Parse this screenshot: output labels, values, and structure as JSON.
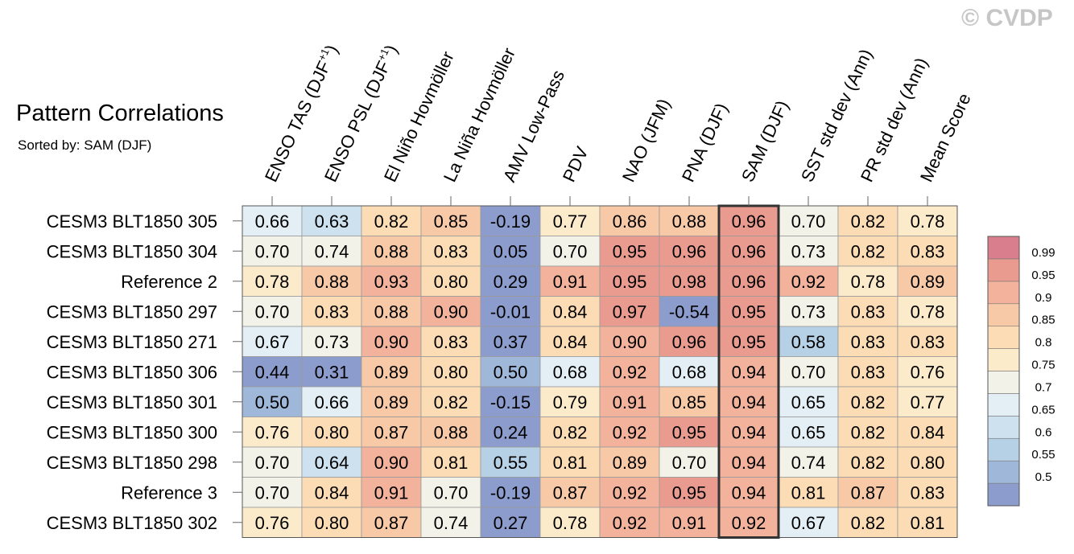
{
  "watermark": "© CVDP",
  "chart_data": {
    "type": "heatmap",
    "title": "Pattern Correlations",
    "subtitle": "Sorted by: SAM (DJF)",
    "columns": [
      "ENSO TAS (DJF+1)",
      "ENSO PSL (DJF+1)",
      "El Niño Hovmöller",
      "La Niña Hovmöller",
      "AMV Low-Pass",
      "PDV",
      "NAO (JFM)",
      "PNA (DJF)",
      "SAM (DJF)",
      "SST std dev (Ann)",
      "PR std dev (Ann)",
      "Mean Score"
    ],
    "highlighted_column": "SAM (DJF)",
    "rows": [
      {
        "label": "CESM3 BLT1850 305",
        "values": [
          0.66,
          0.63,
          0.82,
          0.85,
          -0.19,
          0.77,
          0.86,
          0.88,
          0.96,
          0.7,
          0.82,
          0.78
        ]
      },
      {
        "label": "CESM3 BLT1850 304",
        "values": [
          0.7,
          0.74,
          0.88,
          0.83,
          0.05,
          0.7,
          0.95,
          0.96,
          0.96,
          0.73,
          0.82,
          0.83
        ]
      },
      {
        "label": "Reference 2",
        "values": [
          0.78,
          0.88,
          0.93,
          0.8,
          0.29,
          0.91,
          0.95,
          0.98,
          0.96,
          0.92,
          0.78,
          0.89
        ]
      },
      {
        "label": "CESM3 BLT1850 297",
        "values": [
          0.7,
          0.83,
          0.88,
          0.9,
          -0.01,
          0.84,
          0.97,
          -0.54,
          0.95,
          0.73,
          0.83,
          0.78
        ]
      },
      {
        "label": "CESM3 BLT1850 271",
        "values": [
          0.67,
          0.73,
          0.9,
          0.83,
          0.37,
          0.84,
          0.9,
          0.96,
          0.95,
          0.58,
          0.83,
          0.83
        ]
      },
      {
        "label": "CESM3 BLT1850 306",
        "values": [
          0.44,
          0.31,
          0.89,
          0.8,
          0.5,
          0.68,
          0.92,
          0.68,
          0.94,
          0.7,
          0.83,
          0.76
        ]
      },
      {
        "label": "CESM3 BLT1850 301",
        "values": [
          0.5,
          0.66,
          0.89,
          0.82,
          -0.15,
          0.79,
          0.91,
          0.85,
          0.94,
          0.65,
          0.82,
          0.77
        ]
      },
      {
        "label": "CESM3 BLT1850 300",
        "values": [
          0.76,
          0.8,
          0.87,
          0.88,
          0.24,
          0.82,
          0.92,
          0.95,
          0.94,
          0.65,
          0.82,
          0.84
        ]
      },
      {
        "label": "CESM3 BLT1850 298",
        "values": [
          0.7,
          0.64,
          0.9,
          0.81,
          0.55,
          0.81,
          0.89,
          0.7,
          0.94,
          0.74,
          0.82,
          0.8
        ]
      },
      {
        "label": "Reference 3",
        "values": [
          0.7,
          0.84,
          0.91,
          0.7,
          -0.19,
          0.87,
          0.92,
          0.95,
          0.94,
          0.81,
          0.87,
          0.83
        ]
      },
      {
        "label": "CESM3 BLT1850 302",
        "values": [
          0.76,
          0.8,
          0.87,
          0.74,
          0.27,
          0.78,
          0.92,
          0.91,
          0.92,
          0.67,
          0.82,
          0.81
        ]
      }
    ],
    "colorbar": {
      "levels": [
        "0.99",
        "0.95",
        "0.9",
        "0.85",
        "0.8",
        "0.75",
        "0.7",
        "0.65",
        "0.6",
        "0.55",
        "0.5"
      ],
      "colors": [
        "#d97e8c",
        "#ea9b90",
        "#f2b29b",
        "#f7c9a6",
        "#fbdcb4",
        "#fcebcb",
        "#f3f2e8",
        "#e3eff5",
        "#cde2ee",
        "#b6d1e5",
        "#9fb8da",
        "#8b9ccd"
      ]
    }
  }
}
